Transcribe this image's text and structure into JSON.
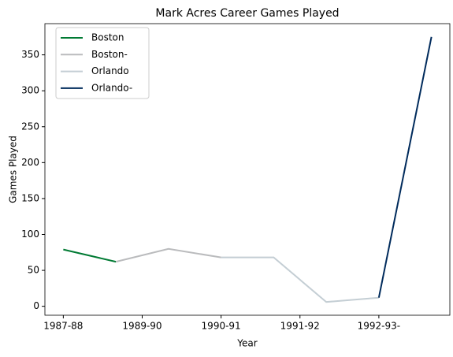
{
  "chart_data": {
    "type": "line",
    "title": "Mark Acres Career Games Played",
    "x_label": "Year",
    "y_label": "Games Played",
    "series": [
      {
        "name": "Boston",
        "color": "#007a33",
        "x": [
          0,
          1
        ],
        "values": [
          79,
          62
        ]
      },
      {
        "name": "Boston-",
        "color": "#babbbd",
        "x": [
          1,
          2,
          3
        ],
        "values": [
          62,
          80,
          68
        ]
      },
      {
        "name": "Orlando",
        "color": "#c4ced4",
        "x": [
          3,
          4,
          5,
          6
        ],
        "values": [
          68,
          68,
          6,
          12
        ]
      },
      {
        "name": "Orlando-",
        "color": "#002b5c",
        "x": [
          6,
          7
        ],
        "values": [
          12,
          375
        ]
      }
    ],
    "xlim": [
      -0.35,
      7.35
    ],
    "xticks": [
      {
        "value": 0,
        "label": "1987-88"
      },
      {
        "value": 1.5,
        "label": "1989-90"
      },
      {
        "value": 3,
        "label": "1990-91"
      },
      {
        "value": 4.5,
        "label": "1991-92"
      },
      {
        "value": 6,
        "label": "1992-93-"
      }
    ],
    "ylim": [
      -12.45,
      393.45
    ],
    "yticks": [
      0,
      50,
      100,
      150,
      200,
      250,
      300,
      350
    ],
    "legend": "upper left"
  }
}
